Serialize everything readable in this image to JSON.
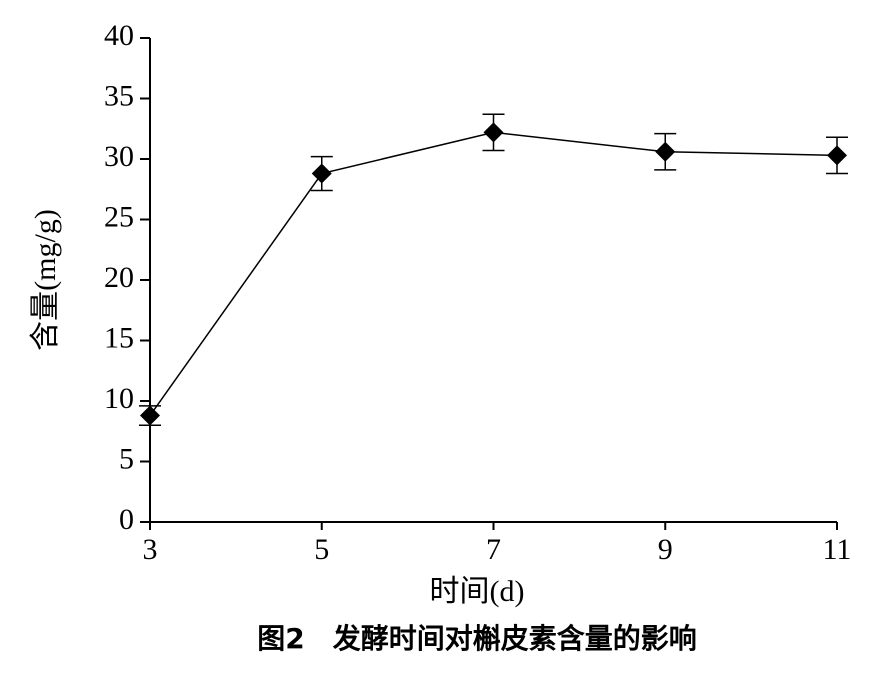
{
  "chart_data": {
    "type": "line",
    "x_label": "时间(d)",
    "y_label": "含量(mg/g)",
    "caption": "图2　发酵时间对槲皮素含量的影响",
    "x": [
      3,
      5,
      7,
      9,
      11
    ],
    "values": [
      8.8,
      28.8,
      32.2,
      30.6,
      30.3
    ],
    "errors": [
      0.8,
      1.4,
      1.5,
      1.5,
      1.5
    ],
    "color": "#000000",
    "xlim": [
      3,
      11
    ],
    "xticks": [
      3,
      5,
      7,
      9,
      11
    ],
    "ylim": [
      0,
      40
    ],
    "yticks": [
      0,
      5,
      10,
      15,
      20,
      25,
      30,
      35,
      40
    ],
    "grid": false
  }
}
